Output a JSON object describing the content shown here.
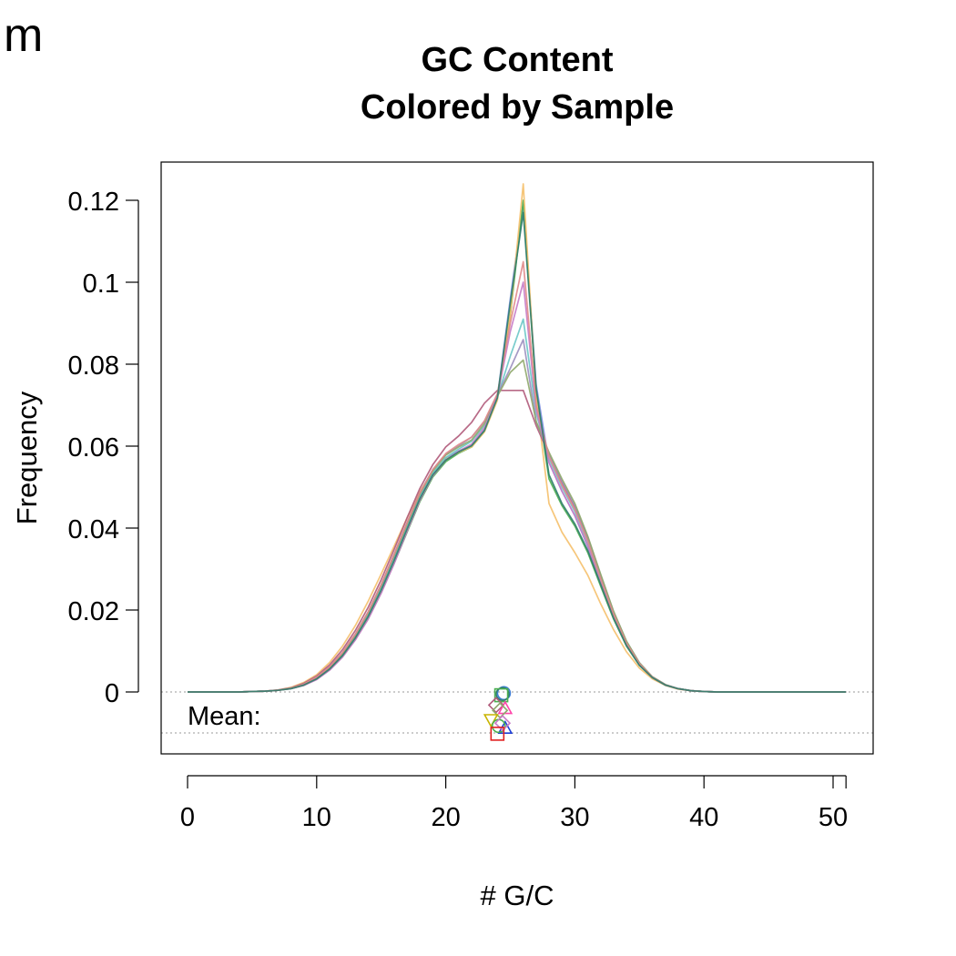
{
  "panel_label": "m",
  "chart_data": {
    "type": "line",
    "title": [
      "GC Content",
      "Colored by Sample"
    ],
    "xlabel": "# G/C",
    "ylabel": "Frequency",
    "mean_label": "Mean:",
    "xlim": [
      -2,
      53
    ],
    "ylim": [
      -0.015,
      0.13
    ],
    "xticks": [
      {
        "value": 0,
        "label": "0"
      },
      {
        "value": 10,
        "label": "10"
      },
      {
        "value": 20,
        "label": "20"
      },
      {
        "value": 30,
        "label": "30"
      },
      {
        "value": 40,
        "label": "40"
      },
      {
        "value": 50,
        "label": "50"
      }
    ],
    "extra_x_tick": 51,
    "yticks": [
      {
        "value": 0,
        "label": "0"
      },
      {
        "value": 0.02,
        "label": "0.02"
      },
      {
        "value": 0.04,
        "label": "0.04"
      },
      {
        "value": 0.06,
        "label": "0.06"
      },
      {
        "value": 0.08,
        "label": "0.08"
      },
      {
        "value": 0.1,
        "label": "0.1"
      },
      {
        "value": 0.12,
        "label": "0.12"
      }
    ],
    "reference_lines_y": [
      0,
      -0.01
    ],
    "x": [
      0,
      1,
      2,
      3,
      4,
      5,
      6,
      7,
      8,
      9,
      10,
      11,
      12,
      13,
      14,
      15,
      16,
      17,
      18,
      19,
      20,
      21,
      22,
      23,
      24,
      25,
      26,
      27,
      28,
      29,
      30,
      31,
      32,
      33,
      34,
      35,
      36,
      37,
      38,
      39,
      40,
      41,
      42,
      43,
      44,
      45,
      46,
      47,
      48,
      49,
      50,
      51
    ],
    "series": [
      {
        "color": "#7b8ee0",
        "values": [
          0,
          0,
          0,
          0,
          0,
          0.0001,
          0.0002,
          0.0004,
          0.0009,
          0.0018,
          0.0034,
          0.0058,
          0.0092,
          0.0136,
          0.019,
          0.0255,
          0.0328,
          0.0405,
          0.0478,
          0.0535,
          0.057,
          0.0588,
          0.0602,
          0.064,
          0.072,
          0.096,
          0.119,
          0.075,
          0.056,
          0.049,
          0.043,
          0.0355,
          0.0265,
          0.0182,
          0.0114,
          0.0066,
          0.0035,
          0.0017,
          0.0008,
          0.0003,
          0.0001,
          0,
          0,
          0,
          0,
          0,
          0,
          0,
          0,
          0,
          0,
          0
        ]
      },
      {
        "color": "#4caf50",
        "values": [
          0,
          0,
          0,
          0,
          0,
          0.0001,
          0.0002,
          0.0004,
          0.0008,
          0.0016,
          0.0031,
          0.0054,
          0.0086,
          0.0128,
          0.018,
          0.0243,
          0.0314,
          0.039,
          0.0465,
          0.0525,
          0.0562,
          0.0583,
          0.0598,
          0.0636,
          0.0718,
          0.092,
          0.12,
          0.073,
          0.052,
          0.0455,
          0.0405,
          0.034,
          0.0258,
          0.0178,
          0.0112,
          0.0065,
          0.0035,
          0.0017,
          0.0008,
          0.0003,
          0.0001,
          0,
          0,
          0,
          0,
          0,
          0,
          0,
          0,
          0,
          0,
          0
        ]
      },
      {
        "color": "#f5c06b",
        "values": [
          0,
          0,
          0,
          0,
          0,
          0.0001,
          0.0002,
          0.0005,
          0.0011,
          0.0023,
          0.0042,
          0.0072,
          0.0112,
          0.0162,
          0.0222,
          0.0288,
          0.0356,
          0.0425,
          0.049,
          0.0538,
          0.0568,
          0.0585,
          0.0598,
          0.0635,
          0.0712,
          0.092,
          0.124,
          0.072,
          0.046,
          0.039,
          0.034,
          0.0285,
          0.0215,
          0.0152,
          0.0098,
          0.0058,
          0.0032,
          0.0016,
          0.0007,
          0.0003,
          0.0001,
          0,
          0,
          0,
          0,
          0,
          0,
          0,
          0,
          0,
          0,
          0
        ]
      },
      {
        "color": "#b05a7a",
        "values": [
          0,
          0,
          0,
          0,
          0,
          0.0001,
          0.0002,
          0.0005,
          0.001,
          0.0021,
          0.0039,
          0.0066,
          0.0103,
          0.015,
          0.0207,
          0.0274,
          0.0348,
          0.0425,
          0.0497,
          0.0555,
          0.0598,
          0.0625,
          0.0658,
          0.0705,
          0.0736,
          0.0736,
          0.0736,
          0.065,
          0.058,
          0.051,
          0.045,
          0.0375,
          0.0282,
          0.0195,
          0.0122,
          0.007,
          0.0037,
          0.0018,
          0.0008,
          0.0003,
          0.0001,
          0,
          0,
          0,
          0,
          0,
          0,
          0,
          0,
          0,
          0,
          0
        ]
      },
      {
        "color": "#6ac7c7",
        "values": [
          0,
          0,
          0,
          0,
          0,
          0.0001,
          0.0002,
          0.0004,
          0.0009,
          0.0018,
          0.0034,
          0.0058,
          0.0092,
          0.0136,
          0.019,
          0.0255,
          0.0328,
          0.0405,
          0.0478,
          0.0535,
          0.0572,
          0.0593,
          0.0612,
          0.065,
          0.072,
          0.082,
          0.091,
          0.068,
          0.057,
          0.05,
          0.044,
          0.0365,
          0.0272,
          0.0188,
          0.0118,
          0.0068,
          0.0036,
          0.0017,
          0.0008,
          0.0003,
          0.0001,
          0,
          0,
          0,
          0,
          0,
          0,
          0,
          0,
          0,
          0,
          0
        ]
      },
      {
        "color": "#9b8fbf",
        "values": [
          0,
          0,
          0,
          0,
          0,
          0.0001,
          0.0002,
          0.0004,
          0.0009,
          0.0019,
          0.0036,
          0.0061,
          0.0096,
          0.0141,
          0.0196,
          0.0262,
          0.0336,
          0.0413,
          0.0486,
          0.0543,
          0.058,
          0.0601,
          0.0622,
          0.066,
          0.0725,
          0.079,
          0.086,
          0.066,
          0.058,
          0.0515,
          0.0455,
          0.0378,
          0.0285,
          0.0196,
          0.0123,
          0.0071,
          0.0037,
          0.0018,
          0.0008,
          0.0003,
          0.0001,
          0,
          0,
          0,
          0,
          0,
          0,
          0,
          0,
          0,
          0,
          0
        ]
      },
      {
        "color": "#8fa86c",
        "values": [
          0,
          0,
          0,
          0,
          0,
          0.0001,
          0.0002,
          0.0004,
          0.0009,
          0.0018,
          0.0035,
          0.006,
          0.0094,
          0.0139,
          0.0194,
          0.026,
          0.0333,
          0.041,
          0.0483,
          0.054,
          0.0578,
          0.0598,
          0.0615,
          0.0655,
          0.0722,
          0.078,
          0.081,
          0.066,
          0.0585,
          0.052,
          0.046,
          0.038,
          0.0287,
          0.0197,
          0.0124,
          0.0071,
          0.0037,
          0.0018,
          0.0008,
          0.0003,
          0.0001,
          0,
          0,
          0,
          0,
          0,
          0,
          0,
          0,
          0,
          0,
          0
        ]
      },
      {
        "color": "#c77cc7",
        "values": [
          0,
          0,
          0,
          0,
          0,
          0.0001,
          0.0002,
          0.0004,
          0.0008,
          0.0016,
          0.003,
          0.0053,
          0.0085,
          0.0127,
          0.0178,
          0.0241,
          0.0313,
          0.0392,
          0.0468,
          0.0528,
          0.0566,
          0.0588,
          0.0605,
          0.0645,
          0.0722,
          0.088,
          0.1,
          0.069,
          0.056,
          0.049,
          0.043,
          0.0356,
          0.0266,
          0.0183,
          0.0115,
          0.0066,
          0.0035,
          0.0017,
          0.0008,
          0.0003,
          0.0001,
          0,
          0,
          0,
          0,
          0,
          0,
          0,
          0,
          0,
          0,
          0
        ]
      },
      {
        "color": "#e08a8a",
        "values": [
          0,
          0,
          0,
          0,
          0,
          0.0001,
          0.0002,
          0.0004,
          0.0009,
          0.0019,
          0.0036,
          0.0061,
          0.0096,
          0.0141,
          0.0196,
          0.0262,
          0.0336,
          0.0413,
          0.0486,
          0.0543,
          0.0582,
          0.0604,
          0.0622,
          0.0662,
          0.0728,
          0.09,
          0.105,
          0.07,
          0.0575,
          0.0505,
          0.0445,
          0.0368,
          0.0276,
          0.019,
          0.0119,
          0.0069,
          0.0036,
          0.0017,
          0.0008,
          0.0003,
          0.0001,
          0,
          0,
          0,
          0,
          0,
          0,
          0,
          0,
          0,
          0,
          0
        ]
      },
      {
        "color": "#2e7d6b",
        "values": [
          0,
          0,
          0,
          0,
          0,
          0.0001,
          0.0002,
          0.0004,
          0.0008,
          0.0017,
          0.0032,
          0.0056,
          0.0089,
          0.0132,
          0.0185,
          0.0249,
          0.0321,
          0.0398,
          0.0472,
          0.053,
          0.0566,
          0.0586,
          0.0601,
          0.0638,
          0.0718,
          0.095,
          0.117,
          0.074,
          0.053,
          0.046,
          0.041,
          0.0345,
          0.0262,
          0.018,
          0.0113,
          0.0065,
          0.0035,
          0.0017,
          0.0008,
          0.0003,
          0.0001,
          0,
          0,
          0,
          0,
          0,
          0,
          0,
          0,
          0,
          0,
          0
        ]
      }
    ],
    "mean_markers": [
      {
        "shape": "circle",
        "color": "#3f7fd6",
        "x": 24.5,
        "y": -0.0003
      },
      {
        "shape": "circle",
        "color": "#2e7d6b",
        "x": 24.4,
        "y": -0.0005
      },
      {
        "shape": "square",
        "color": "#4caf50",
        "x": 24.3,
        "y": -0.0008
      },
      {
        "shape": "diamond",
        "color": "#b05a7a",
        "x": 23.9,
        "y": -0.0032
      },
      {
        "shape": "triangle-up",
        "color": "#ff44aa",
        "x": 24.6,
        "y": -0.004
      },
      {
        "shape": "diamond",
        "color": "#8fa86c",
        "x": 24.2,
        "y": -0.0045
      },
      {
        "shape": "triangle-down",
        "color": "#c8b400",
        "x": 23.5,
        "y": -0.0068
      },
      {
        "shape": "triangle-up",
        "color": "#1f3fd6",
        "x": 24.6,
        "y": -0.0088
      },
      {
        "shape": "circle",
        "color": "#4caf50",
        "x": 24.1,
        "y": -0.0083
      },
      {
        "shape": "diamond",
        "color": "#c77cc7",
        "x": 24.4,
        "y": -0.0076
      },
      {
        "shape": "square",
        "color": "#e02020",
        "x": 24.0,
        "y": -0.0102
      }
    ]
  }
}
